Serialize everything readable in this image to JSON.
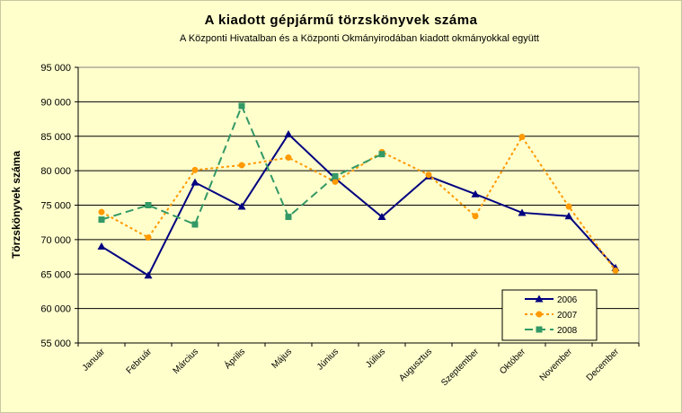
{
  "chart_data": {
    "type": "line",
    "title": "A  kiadott gépjármű  törzskönyvek száma",
    "subtitle": "A Központi Hivatalban és a Központi Okmányirodában kiadott okmányokkal együtt",
    "xlabel": "",
    "ylabel": "Törzskönyvek száma",
    "ylim": [
      55000,
      95000
    ],
    "yticks": [
      55000,
      60000,
      65000,
      70000,
      75000,
      80000,
      85000,
      90000,
      95000
    ],
    "ytick_labels": [
      "55 000",
      "60 000",
      "65 000",
      "70 000",
      "75 000",
      "80 000",
      "85 000",
      "90 000",
      "95 000"
    ],
    "categories": [
      "Január",
      "Február",
      "Március",
      "Április",
      "Május",
      "Június",
      "Július",
      "Augusztus",
      "Szeptember",
      "Október",
      "November",
      "December"
    ],
    "grid": "horizontal",
    "legend_position": "bottom-right",
    "series": [
      {
        "name": "2006",
        "color": "#000080",
        "marker": "triangle",
        "dash": "solid",
        "values": [
          69000,
          64800,
          78300,
          74800,
          85300,
          78900,
          73300,
          79200,
          76600,
          73900,
          73400,
          65900
        ]
      },
      {
        "name": "2007",
        "color": "#ff9900",
        "marker": "circle",
        "dash": "dotted",
        "values": [
          74000,
          70300,
          80100,
          80800,
          81900,
          78400,
          82700,
          79400,
          73400,
          84900,
          74800,
          65500
        ]
      },
      {
        "name": "2008",
        "color": "#339966",
        "marker": "square",
        "dash": "dashed",
        "values": [
          72900,
          75000,
          72200,
          89400,
          73300,
          79200,
          82400,
          null,
          null,
          null,
          null,
          null
        ]
      }
    ]
  }
}
